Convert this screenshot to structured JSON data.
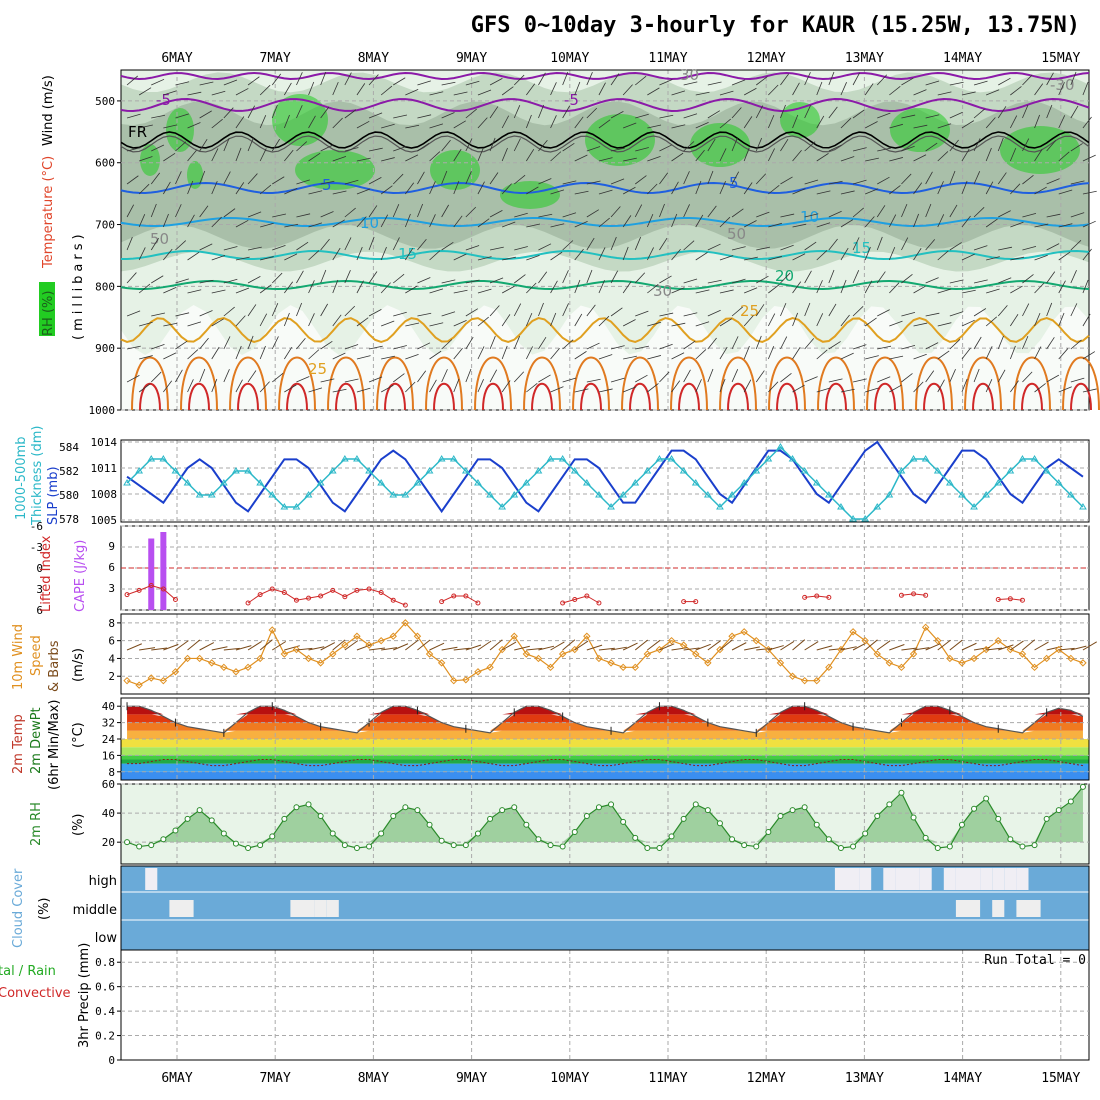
{
  "title": "GFS 0~10day 3-hourly for KAUR (15.25W, 13.75N)",
  "date_labels": [
    "6MAY",
    "7MAY",
    "8MAY",
    "9MAY",
    "10MAY",
    "11MAY",
    "12MAY",
    "13MAY",
    "14MAY",
    "15MAY"
  ],
  "colors": {
    "frame": "#000000",
    "grid": "#aaaaaa",
    "purple": "#8b1aa8",
    "blue_temp": "#1f5fe0",
    "rh_light": "#e6f2e6",
    "rh_mid": "#c4d9c4",
    "rh_dark": "#a9bfa9",
    "rh_green": "#22cc22",
    "slp": "#1a3fcc",
    "thickness": "#2cb8c8",
    "cape": "#b84ff0",
    "li": "#d02828",
    "wind": "#e09020",
    "rh2m": "#2a8a2a",
    "cloud": "#6aaad8",
    "cloud_gap": "#eeeeee"
  },
  "panels": {
    "upper": {
      "y_label_rh": "RH (%)",
      "y_label_temp": "Temperature (°C)",
      "y_label_wind": "Wind (m/s)",
      "y_label_units": "(millibars)",
      "ticks": [
        "500",
        "600",
        "700",
        "800",
        "900",
        "1000"
      ],
      "contour_labels": [
        "-5",
        "-5",
        "FR",
        "5",
        "5",
        "10",
        "10",
        "15",
        "15",
        "20",
        "25",
        "25",
        "30",
        "50",
        "30",
        "50",
        "-30"
      ]
    },
    "slp": {
      "label_thickness": "1000-500mb",
      "label_thickness2": "Thickness (dm)",
      "label_slp": "SLP (mb)",
      "ticks_left": [
        "584",
        "582",
        "580",
        "578"
      ],
      "ticks_right": [
        "1014",
        "1011",
        "1008",
        "1005"
      ]
    },
    "cape": {
      "label_li": "Lifted Index",
      "label_cape": "CAPE (J/kg)",
      "ticks_left": [
        "-6",
        "-3",
        "0",
        "3",
        "6"
      ],
      "ticks_right": [
        "9",
        "6",
        "3"
      ]
    },
    "wind": {
      "label1": "10m Wind",
      "label2": "Speed",
      "label3": "& Barbs",
      "unit": "(m/s)",
      "ticks": [
        "8",
        "6",
        "4",
        "2"
      ]
    },
    "temp": {
      "label1": "2m Temp",
      "label2": "2m DewPt",
      "label3": "(6hr Min/Max)",
      "unit": "(°C)",
      "ticks": [
        "40",
        "32",
        "24",
        "16",
        "8"
      ]
    },
    "rh": {
      "label": "2m RH",
      "unit": "(%)",
      "ticks": [
        "60",
        "40",
        "20"
      ]
    },
    "cloud": {
      "label": "Cloud Cover",
      "unit": "(%)",
      "levels": [
        "high",
        "middle",
        "low"
      ]
    },
    "precip": {
      "label1": "tal / Rain",
      "label2": "Convective",
      "label3": "3hr Precip (mm)",
      "ticks": [
        "0.8",
        "0.6",
        "0.4",
        "0.2",
        "0"
      ],
      "run_total": "Run Total = 0"
    }
  },
  "chart_data": {
    "type": "line",
    "title": "GFS 0~10day 3-hourly for KAUR (15.25W, 13.75N)",
    "time_axis": {
      "start": "5MAY 12Z",
      "step_hours": 3,
      "points": 80
    },
    "series": [
      {
        "name": "SLP (mb)",
        "values": [
          1010,
          1009,
          1008,
          1007,
          1009,
          1011,
          1012,
          1011,
          1009,
          1007,
          1006,
          1008,
          1010,
          1012,
          1012,
          1011,
          1009,
          1007,
          1006,
          1008,
          1010,
          1012,
          1013,
          1012,
          1010,
          1008,
          1006,
          1008,
          1010,
          1012,
          1012,
          1011,
          1009,
          1007,
          1006,
          1008,
          1010,
          1012,
          1012,
          1011,
          1009,
          1007,
          1007,
          1009,
          1011,
          1013,
          1013,
          1012,
          1010,
          1008,
          1007,
          1009,
          1011,
          1013,
          1013,
          1012,
          1010,
          1008,
          1007,
          1009,
          1011,
          1013,
          1014,
          1012,
          1010,
          1008,
          1007,
          1009,
          1011,
          1013,
          1013,
          1012,
          1010,
          1008,
          1007,
          1009,
          1011,
          1012,
          1011,
          1010
        ]
      },
      {
        "name": "1000-500mb Thickness (dm)",
        "values": [
          581,
          582,
          583,
          583,
          582,
          581,
          580,
          580,
          581,
          582,
          582,
          581,
          580,
          579,
          579,
          580,
          581,
          582,
          583,
          583,
          582,
          581,
          580,
          580,
          581,
          582,
          583,
          583,
          582,
          581,
          580,
          579,
          580,
          581,
          582,
          583,
          583,
          582,
          581,
          580,
          579,
          580,
          581,
          582,
          583,
          583,
          582,
          581,
          580,
          579,
          580,
          581,
          582,
          583,
          584,
          583,
          582,
          581,
          580,
          579,
          578,
          578,
          579,
          580,
          582,
          583,
          583,
          582,
          581,
          580,
          579,
          580,
          581,
          582,
          583,
          583,
          582,
          581,
          580,
          579
        ]
      },
      {
        "name": "Lifted Index",
        "values": [
          3.8,
          3.2,
          2.5,
          3.0,
          4.5,
          6,
          6,
          6,
          6,
          6,
          5.0,
          3.8,
          3.0,
          3.5,
          4.6,
          4.3,
          4.0,
          3.2,
          4.1,
          3.2,
          3.0,
          3.5,
          4.6,
          5.3,
          6,
          6,
          4.8,
          4.0,
          4.0,
          5.0,
          6,
          6,
          6,
          6,
          6,
          6,
          5.0,
          4.5,
          4.0,
          5.0,
          6,
          6,
          6,
          6,
          6,
          6,
          4.8,
          4.8,
          6,
          6,
          6,
          6,
          6,
          6,
          6,
          6,
          4.2,
          4.0,
          4.2,
          6,
          6,
          6,
          6,
          6,
          3.9,
          3.7,
          3.9,
          6,
          6,
          6,
          6,
          6,
          4.5,
          4.4,
          4.6,
          6,
          6,
          6,
          6,
          6
        ]
      },
      {
        "name": "CAPE (J/kg)",
        "values": [
          0,
          0,
          11,
          12,
          0,
          0,
          0,
          0,
          0,
          0,
          0,
          0,
          0,
          0,
          0,
          0,
          0,
          0,
          0,
          0,
          0,
          0,
          0,
          0,
          0,
          0,
          0,
          0,
          0,
          0,
          0,
          0,
          0,
          0,
          0,
          0,
          0,
          0,
          0,
          0,
          0,
          0,
          0,
          0,
          0,
          0,
          0,
          0,
          0,
          0,
          0,
          0,
          0,
          0,
          0,
          0,
          0,
          0,
          0,
          0,
          0,
          0,
          0,
          0,
          0,
          0,
          0,
          0,
          0,
          0,
          0,
          0,
          0,
          0,
          0,
          0,
          0,
          0,
          0,
          0
        ]
      },
      {
        "name": "10m Wind Speed (m/s)",
        "values": [
          1.5,
          1.0,
          1.8,
          1.5,
          2.5,
          4.0,
          4.0,
          3.5,
          3.0,
          2.5,
          3.0,
          4.0,
          7.2,
          4.5,
          5.0,
          4.0,
          3.5,
          4.5,
          5.5,
          6.5,
          5.5,
          6.0,
          6.5,
          8.0,
          6.5,
          4.5,
          3.5,
          1.5,
          1.6,
          2.5,
          3.0,
          5.0,
          6.5,
          4.5,
          4.0,
          3.0,
          4.5,
          5.0,
          6.5,
          4.0,
          3.5,
          3.0,
          3.0,
          4.5,
          5.0,
          6.0,
          5.5,
          4.5,
          3.5,
          5.0,
          6.5,
          7.0,
          6.0,
          5.0,
          3.5,
          2.0,
          1.5,
          1.5,
          3.0,
          5.0,
          7.0,
          6.0,
          4.5,
          3.5,
          3.0,
          4.5,
          7.5,
          6.0,
          4.0,
          3.5,
          4.0,
          5.0,
          6.0,
          5.0,
          4.5,
          3.0,
          4.0,
          5.0,
          4.0,
          3.5
        ]
      },
      {
        "name": "2m Temp (°C)",
        "values": [
          40,
          40,
          38,
          35,
          32,
          30,
          29,
          28,
          27,
          32,
          37,
          40,
          40,
          38,
          35,
          32,
          30,
          29,
          28,
          27,
          32,
          37,
          40,
          40,
          38,
          35,
          32,
          30,
          29,
          28,
          27,
          32,
          37,
          40,
          40,
          38,
          35,
          32,
          30,
          29,
          28,
          27,
          32,
          37,
          40,
          40,
          38,
          35,
          32,
          30,
          29,
          28,
          27,
          32,
          37,
          40,
          40,
          38,
          35,
          32,
          30,
          29,
          28,
          27,
          32,
          37,
          40,
          40,
          38,
          35,
          32,
          30,
          29,
          28,
          27,
          32,
          37,
          39,
          38,
          35
        ]
      },
      {
        "name": "2m DewPt (°C)",
        "values": [
          12,
          12,
          13,
          14,
          14,
          13,
          12,
          11,
          11,
          12,
          13,
          14,
          14,
          13,
          12,
          11,
          11,
          12,
          13,
          14,
          14,
          13,
          12,
          11,
          11,
          12,
          13,
          14,
          14,
          13,
          12,
          11,
          11,
          12,
          13,
          14,
          14,
          13,
          12,
          11,
          11,
          12,
          13,
          14,
          14,
          13,
          12,
          11,
          11,
          12,
          13,
          14,
          14,
          13,
          12,
          11,
          11,
          12,
          13,
          14,
          14,
          13,
          12,
          11,
          11,
          12,
          13,
          14,
          14,
          13,
          12,
          11,
          11,
          12,
          13,
          14,
          14,
          13,
          12,
          11
        ]
      },
      {
        "name": "2m RH (%)",
        "values": [
          20,
          17,
          18,
          22,
          28,
          36,
          42,
          35,
          26,
          19,
          16,
          18,
          24,
          36,
          44,
          46,
          38,
          26,
          18,
          16,
          17,
          26,
          38,
          44,
          42,
          32,
          21,
          18,
          18,
          26,
          36,
          42,
          44,
          32,
          22,
          18,
          17,
          27,
          38,
          44,
          46,
          34,
          23,
          16,
          16,
          24,
          36,
          46,
          42,
          33,
          22,
          18,
          17,
          27,
          38,
          42,
          44,
          32,
          22,
          16,
          17,
          26,
          38,
          46,
          54,
          37,
          23,
          16,
          17,
          32,
          43,
          50,
          36,
          22,
          17,
          18,
          36,
          42,
          48,
          58
        ]
      },
      {
        "name": "3hr Precip (mm)",
        "values": [
          0,
          0,
          0,
          0,
          0,
          0,
          0,
          0,
          0,
          0,
          0,
          0,
          0,
          0,
          0,
          0,
          0,
          0,
          0,
          0,
          0,
          0,
          0,
          0,
          0,
          0,
          0,
          0,
          0,
          0,
          0,
          0,
          0,
          0,
          0,
          0,
          0,
          0,
          0,
          0,
          0,
          0,
          0,
          0,
          0,
          0,
          0,
          0,
          0,
          0,
          0,
          0,
          0,
          0,
          0,
          0,
          0,
          0,
          0,
          0,
          0,
          0,
          0,
          0,
          0,
          0,
          0,
          0,
          0,
          0,
          0,
          0,
          0,
          0,
          0,
          0,
          0,
          0,
          0,
          0
        ]
      }
    ],
    "cloud_high": [
      0,
      0,
      1,
      0,
      0,
      0,
      0,
      0,
      0,
      0,
      0,
      0,
      0,
      0,
      0,
      0,
      0,
      0,
      0,
      0,
      0,
      0,
      0,
      0,
      0,
      0,
      0,
      0,
      0,
      0,
      0,
      0,
      0,
      0,
      0,
      0,
      0,
      0,
      0,
      0,
      0,
      0,
      0,
      0,
      0,
      0,
      0,
      0,
      0,
      0,
      0,
      0,
      0,
      0,
      0,
      0,
      0,
      0,
      0,
      1,
      1,
      1,
      0,
      1,
      1,
      1,
      1,
      0,
      1,
      1,
      1,
      1,
      1,
      1,
      1,
      0,
      0,
      0,
      0,
      0
    ],
    "cloud_mid": [
      0,
      0,
      0,
      0,
      1,
      1,
      0,
      0,
      0,
      0,
      0,
      0,
      0,
      0,
      1,
      1,
      1,
      1,
      0,
      0,
      0,
      0,
      0,
      0,
      0,
      0,
      0,
      0,
      0,
      0,
      0,
      0,
      0,
      0,
      0,
      0,
      0,
      0,
      0,
      0,
      0,
      0,
      0,
      0,
      0,
      0,
      0,
      0,
      0,
      0,
      0,
      0,
      0,
      0,
      0,
      0,
      0,
      0,
      0,
      0,
      0,
      0,
      0,
      0,
      0,
      0,
      0,
      0,
      0,
      1,
      1,
      0,
      1,
      0,
      1,
      1,
      0,
      0,
      0,
      0
    ],
    "xlabel": "",
    "ylabel": ""
  }
}
